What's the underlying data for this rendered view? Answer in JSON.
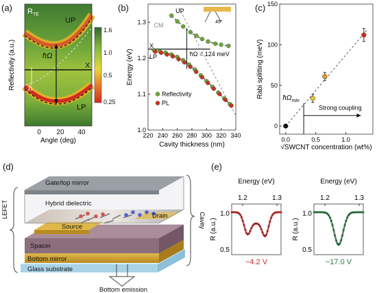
{
  "panels": {
    "a": {
      "tag": "(a)",
      "corner_label": "R",
      "corner_sub": "TE",
      "ylabel": "Reflectivity (a.u.)",
      "xlabel": "Angle (deg)",
      "xticks": [
        "0",
        "20",
        "40"
      ],
      "up_label": "UP",
      "lp_label": "LP",
      "hbar_label": "ħΩ",
      "delta_label": "Δ",
      "x_label": "X",
      "colorbar_ticks": [
        "1.6",
        "1.0",
        "0.5",
        "0.25"
      ],
      "colorbar_colors": [
        "#2e6b2e",
        "#8fbf3f",
        "#e5d93a",
        "#e8832a",
        "#d42a20"
      ]
    },
    "b": {
      "tag": "(b)",
      "ylabel": "Energy (eV)",
      "xlabel": "Cavity thickness (nm)",
      "up_label": "UP",
      "lp_label": "LP",
      "cm_label": "CM",
      "x_label": "X",
      "rabi_label": "ħΩ = 124 meV",
      "inset_angle": "45°",
      "legend": [
        "Reflectivity",
        "PL"
      ]
    },
    "c": {
      "tag": "(c)",
      "ylabel": "Rabi splitting (meV)",
      "xlabel": "√SWCNT concentration (wt%)",
      "threshold_label": "ħΩ",
      "threshold_sub": "min",
      "strong_label": "Strong coupling"
    },
    "d": {
      "tag": "(d)",
      "left_label": "LEFET",
      "right_label": "Cavity",
      "layers": [
        "Gate/top mirror",
        "Hybrid dielectric",
        "Source",
        "Drain",
        "Spacer",
        "Bottom mirror",
        "Glass substrate"
      ],
      "emission_label": "Bottom emission"
    },
    "e": {
      "tag": "(e)",
      "left": {
        "xlabel": "Energy (eV)",
        "xticks": [
          "1.2",
          "1.3"
        ],
        "ylabel": "R (a.u.)",
        "yticks": [
          "1.0",
          "0.5"
        ],
        "voltage": "−4.2 V",
        "color": "#c82828"
      },
      "right": {
        "xlabel": "Energy (eV)",
        "xticks": [
          "1.2",
          "1.3"
        ],
        "ylabel": "R (a.u.)",
        "yticks": [
          "1.0",
          "0.5"
        ],
        "voltage": "−17.0 V",
        "color": "#2e7d46"
      }
    }
  },
  "chart_data": [
    {
      "type": "scatter",
      "panel": "b",
      "xlabel": "Cavity thickness (nm)",
      "ylabel": "Energy (eV)",
      "xlim": [
        220,
        340
      ],
      "ylim": [
        1.0,
        1.35
      ],
      "xticks": [
        220,
        240,
        260,
        280,
        300,
        320,
        340
      ],
      "yticks": [
        1.0,
        1.1,
        1.2,
        1.3
      ],
      "series": [
        {
          "name": "Reflectivity",
          "color": "#6aa63a",
          "x": [
            252,
            260,
            268,
            278,
            286,
            294,
            302,
            312,
            320,
            330
          ],
          "y": [
            1.318,
            1.302,
            1.288,
            1.272,
            1.262,
            1.253,
            1.246,
            1.24,
            1.237,
            1.234
          ]
        },
        {
          "name": "Reflectivity",
          "color": "#6aa63a",
          "x": [
            228,
            236,
            244,
            252,
            260,
            268,
            276,
            284,
            292,
            300,
            308,
            316,
            324,
            332
          ],
          "y": [
            1.222,
            1.219,
            1.215,
            1.21,
            1.203,
            1.194,
            1.182,
            1.168,
            1.152,
            1.136,
            1.12,
            1.104,
            1.088,
            1.072
          ]
        },
        {
          "name": "PL",
          "color": "#c8321e",
          "x": [
            228,
            236,
            244,
            252,
            260,
            268,
            276,
            284,
            292,
            300,
            308,
            316,
            324,
            332
          ],
          "y": [
            1.218,
            1.215,
            1.21,
            1.205,
            1.197,
            1.188,
            1.176,
            1.162,
            1.147,
            1.131,
            1.115,
            1.1,
            1.084,
            1.068
          ]
        }
      ]
    },
    {
      "type": "scatter",
      "panel": "c",
      "xlabel": "√SWCNT concentration (wt%)",
      "ylabel": "Rabi splitting (meV)",
      "xlim": [
        -0.1,
        1.45
      ],
      "ylim": [
        -10,
        150
      ],
      "xticks": [
        0.0,
        0.5,
        1.0
      ],
      "yticks": [
        0,
        50,
        100,
        150
      ],
      "points": [
        {
          "x": 0.0,
          "y": 0,
          "err": 0,
          "color": "#111111"
        },
        {
          "x": 0.45,
          "y": 34,
          "err": 5,
          "color": "#e8c430"
        },
        {
          "x": 0.65,
          "y": 61,
          "err": 5,
          "color": "#e89a2a"
        },
        {
          "x": 1.3,
          "y": 112,
          "err": 8,
          "color": "#c8321e"
        }
      ],
      "threshold_x": 0.3
    }
  ]
}
